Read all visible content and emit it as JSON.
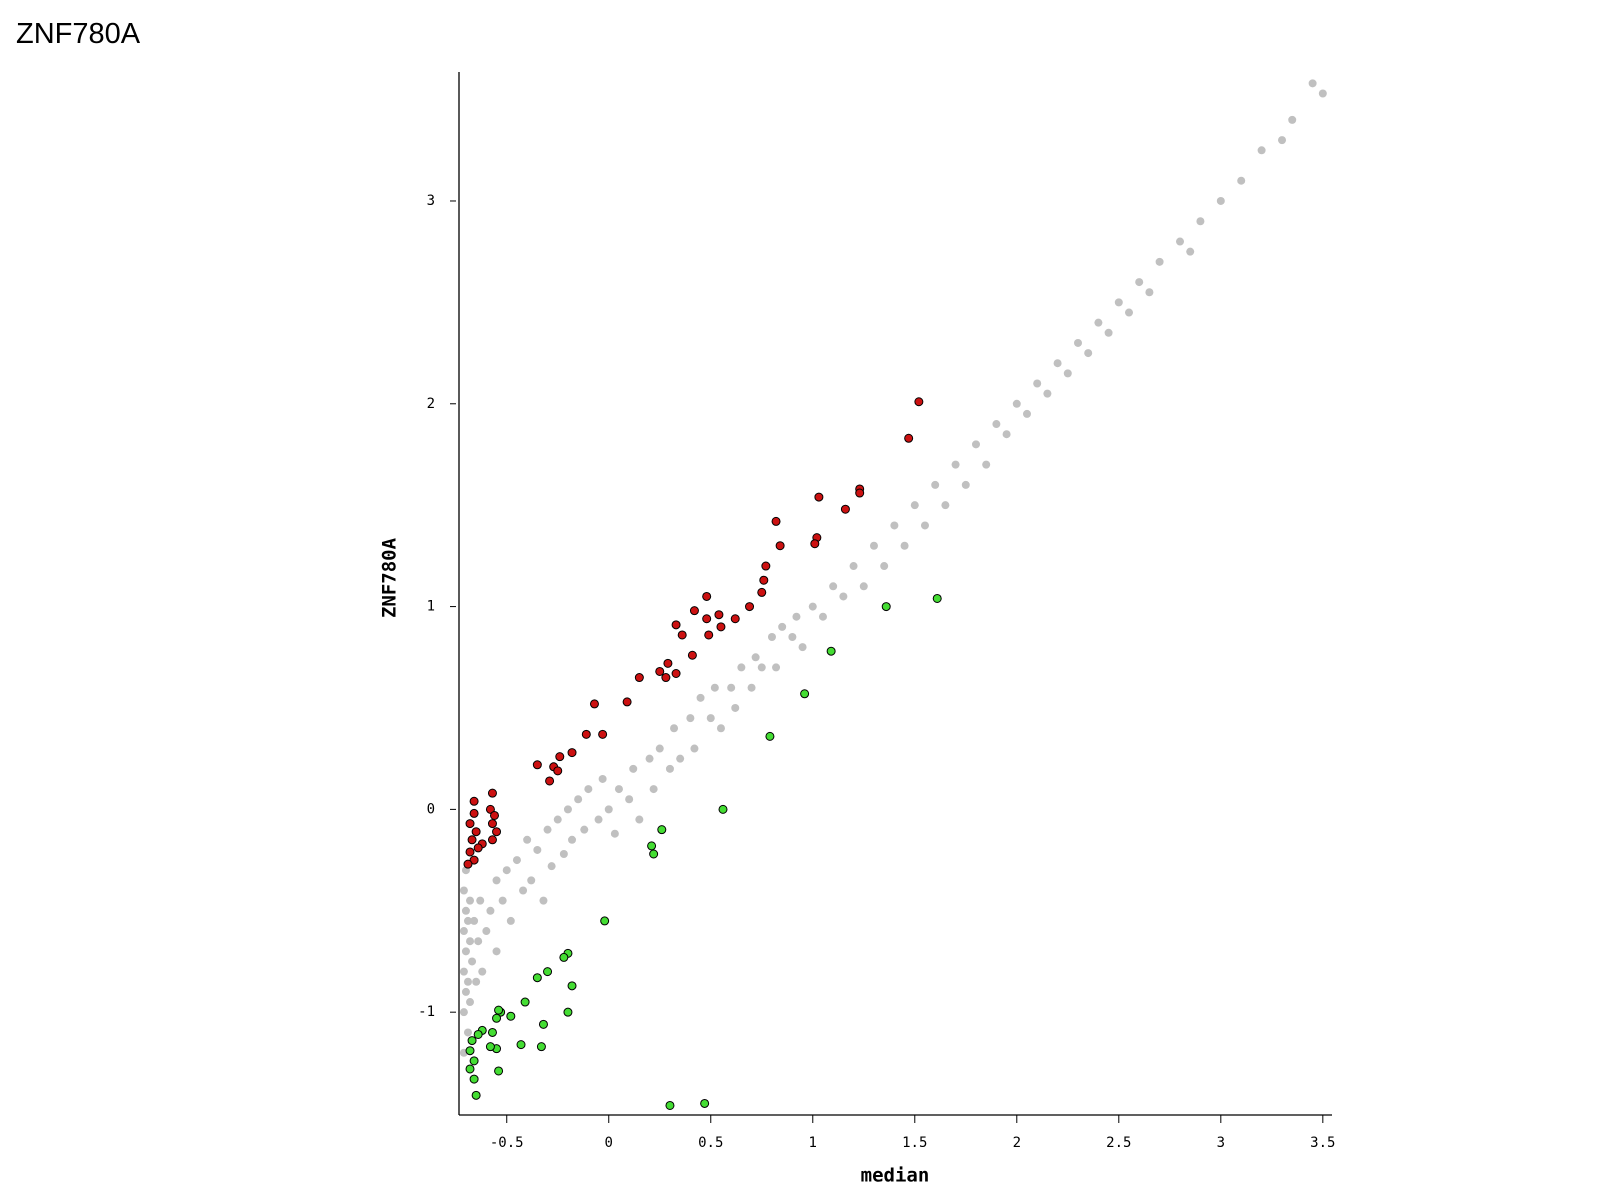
{
  "chart_data": {
    "type": "scatter",
    "title": "ZNF780A",
    "xlabel": "median",
    "ylabel": "ZNF780A",
    "xlim": [
      -0.734,
      3.545
    ],
    "ylim": [
      -1.507,
      3.636
    ],
    "xticks": [
      -0.5,
      0,
      0.5,
      1,
      1.5,
      2,
      2.5,
      3,
      3.5
    ],
    "yticks": [
      -1,
      0,
      1,
      2,
      3
    ],
    "grid": false,
    "series": [
      {
        "color": "#c0c0c0",
        "x": [
          -0.71,
          -0.71,
          -0.71,
          -0.71,
          -0.71,
          -0.7,
          -0.7,
          -0.7,
          -0.7,
          -0.69,
          -0.69,
          -0.69,
          -0.68,
          -0.68,
          -0.68,
          -0.67,
          -0.66,
          -0.65,
          -0.64,
          -0.63,
          -0.62,
          -0.6,
          -0.58,
          -0.55,
          -0.55,
          -0.52,
          -0.5,
          -0.48,
          -0.45,
          -0.42,
          -0.4,
          -0.38,
          -0.35,
          -0.32,
          -0.3,
          -0.28,
          -0.25,
          -0.22,
          -0.2,
          -0.18,
          -0.15,
          -0.12,
          -0.1,
          -0.05,
          -0.03,
          0.0,
          0.03,
          0.05,
          0.1,
          0.12,
          0.15,
          0.2,
          0.22,
          0.25,
          0.3,
          0.32,
          0.35,
          0.4,
          0.42,
          0.45,
          0.5,
          0.52,
          0.55,
          0.6,
          0.62,
          0.65,
          0.7,
          0.72,
          0.75,
          0.8,
          0.82,
          0.85,
          0.9,
          0.92,
          0.95,
          1.0,
          1.05,
          1.1,
          1.15,
          1.2,
          1.25,
          1.3,
          1.35,
          1.4,
          1.45,
          1.5,
          1.55,
          1.6,
          1.65,
          1.7,
          1.75,
          1.8,
          1.85,
          1.9,
          1.95,
          2.0,
          2.05,
          2.1,
          2.15,
          2.2,
          2.25,
          2.3,
          2.35,
          2.4,
          2.45,
          2.5,
          2.55,
          2.6,
          2.65,
          2.7,
          2.8,
          2.85,
          2.9,
          3.0,
          3.1,
          3.2,
          3.3,
          3.35,
          3.45,
          3.5
        ],
        "values": [
          -1.2,
          -1.0,
          -0.8,
          -0.6,
          -0.4,
          -0.9,
          -0.7,
          -0.5,
          -0.3,
          -1.1,
          -0.85,
          -0.55,
          -0.95,
          -0.65,
          -0.45,
          -0.75,
          -0.55,
          -0.85,
          -0.65,
          -0.45,
          -0.8,
          -0.6,
          -0.5,
          -0.35,
          -0.7,
          -0.45,
          -0.3,
          -0.55,
          -0.25,
          -0.4,
          -0.15,
          -0.35,
          -0.2,
          -0.45,
          -0.1,
          -0.28,
          -0.05,
          -0.22,
          0.0,
          -0.15,
          0.05,
          -0.1,
          0.1,
          -0.05,
          0.15,
          0.0,
          -0.12,
          0.1,
          0.05,
          0.2,
          -0.05,
          0.25,
          0.1,
          0.3,
          0.2,
          0.4,
          0.25,
          0.45,
          0.3,
          0.55,
          0.45,
          0.6,
          0.4,
          0.6,
          0.5,
          0.7,
          0.6,
          0.75,
          0.7,
          0.85,
          0.7,
          0.9,
          0.85,
          0.95,
          0.8,
          1.0,
          0.95,
          1.1,
          1.05,
          1.2,
          1.1,
          1.3,
          1.2,
          1.4,
          1.3,
          1.5,
          1.4,
          1.6,
          1.5,
          1.7,
          1.6,
          1.8,
          1.7,
          1.9,
          1.85,
          2.0,
          1.95,
          2.1,
          2.05,
          2.2,
          2.15,
          2.3,
          2.25,
          2.4,
          2.35,
          2.5,
          2.45,
          2.6,
          2.55,
          2.7,
          2.8,
          2.75,
          2.9,
          3.0,
          3.1,
          3.25,
          3.3,
          3.4,
          3.58,
          3.53
        ]
      },
      {
        "color": "#cc1111",
        "x": [
          1.52,
          1.47,
          1.23,
          1.23,
          1.16,
          1.03,
          1.02,
          1.01,
          0.82,
          0.84,
          0.77,
          0.76,
          0.75,
          0.69,
          0.62,
          0.54,
          0.55,
          0.48,
          0.48,
          0.49,
          0.42,
          0.41,
          0.33,
          0.36,
          0.29,
          0.33,
          0.25,
          0.28,
          0.15,
          0.09,
          -0.07,
          -0.11,
          -0.03,
          -0.35,
          -0.24,
          -0.18,
          -0.27,
          -0.25,
          -0.29,
          -0.57,
          -0.66,
          -0.58,
          -0.56,
          -0.57,
          -0.55,
          -0.57,
          -0.66,
          -0.68,
          -0.65,
          -0.67,
          -0.62,
          -0.68,
          -0.66,
          -0.69,
          -0.64
        ],
        "values": [
          2.01,
          1.83,
          1.58,
          1.56,
          1.48,
          1.54,
          1.34,
          1.31,
          1.42,
          1.3,
          1.2,
          1.13,
          1.07,
          1.0,
          0.94,
          0.96,
          0.9,
          1.05,
          0.94,
          0.86,
          0.98,
          0.76,
          0.91,
          0.86,
          0.72,
          0.67,
          0.68,
          0.65,
          0.65,
          0.53,
          0.52,
          0.37,
          0.37,
          0.22,
          0.26,
          0.28,
          0.21,
          0.19,
          0.14,
          0.08,
          0.04,
          0,
          -0.03,
          -0.07,
          -0.11,
          -0.15,
          -0.02,
          -0.07,
          -0.11,
          -0.15,
          -0.17,
          -0.21,
          -0.25,
          -0.27,
          -0.19
        ]
      },
      {
        "color": "#44dd33",
        "x": [
          1.61,
          1.36,
          1.09,
          0.96,
          0.79,
          0.56,
          0.26,
          0.21,
          0.22,
          -0.02,
          -0.2,
          -0.22,
          -0.3,
          -0.35,
          -0.18,
          -0.41,
          -0.2,
          -0.48,
          -0.53,
          -0.55,
          -0.54,
          -0.32,
          -0.43,
          -0.33,
          -0.54,
          -0.55,
          -0.58,
          -0.57,
          -0.62,
          -0.64,
          -0.67,
          -0.68,
          -0.66,
          -0.68,
          -0.66,
          -0.65,
          0.3,
          0.47
        ],
        "values": [
          1.04,
          1.0,
          0.78,
          0.57,
          0.36,
          0.0,
          -0.1,
          -0.18,
          -0.22,
          -0.55,
          -0.71,
          -0.73,
          -0.8,
          -0.83,
          -0.87,
          -0.95,
          -1.0,
          -1.02,
          -1.0,
          -1.03,
          -0.99,
          -1.06,
          -1.16,
          -1.17,
          -1.29,
          -1.18,
          -1.17,
          -1.1,
          -1.09,
          -1.11,
          -1.14,
          -1.19,
          -1.24,
          -1.28,
          -1.33,
          -1.41,
          -1.46,
          -1.45
        ]
      }
    ]
  }
}
